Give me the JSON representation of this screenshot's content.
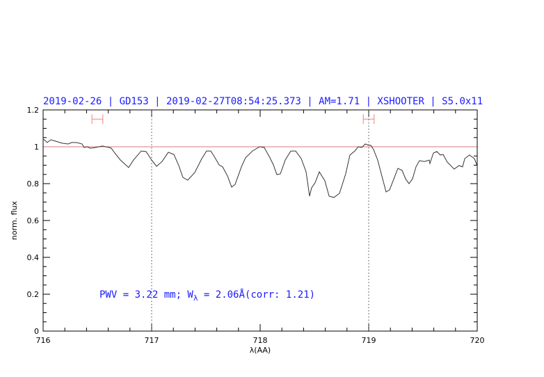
{
  "chart_data": {
    "type": "line",
    "title": "2019-02-26 | GD153 | 2019-02-27T08:54:25.373 | AM=1.71 | XSHOOTER | S5.0x11",
    "xlabel": "λ(AA)",
    "ylabel": "norm. flux",
    "xlim": [
      716,
      720
    ],
    "ylim": [
      0,
      1.2
    ],
    "xticks": [
      "716",
      "717",
      "718",
      "719",
      "720"
    ],
    "yticks": [
      "0",
      "0.2",
      "0.4",
      "0.6",
      "0.8",
      "1",
      "1.2"
    ],
    "grid": false,
    "annotation": {
      "prefix": "PWV = 3.22 mm; W",
      "sub": "λ",
      "suffix": " = 2.06Å(corr: 1.21)"
    },
    "reference_line_y": 1.0,
    "vertical_dotted_lines_x": [
      717,
      719
    ],
    "error_bars": [
      {
        "x_from": 716.45,
        "x_to": 716.55,
        "y": 1.15
      },
      {
        "x_from": 718.95,
        "x_to": 719.05,
        "y": 1.15
      }
    ],
    "colors": {
      "title": "#1a1aff",
      "spectrum": "#333333",
      "reference_line": "#d87878",
      "error_bars": "#f08080"
    },
    "series": [
      {
        "x": [
          716.006,
          716.038,
          716.071,
          716.115,
          716.179,
          716.231,
          716.263,
          716.308,
          716.359,
          716.378,
          716.404,
          716.436,
          716.481,
          716.545,
          716.609,
          716.628,
          716.66,
          716.712,
          716.788,
          716.833,
          716.904,
          716.949,
          717.0,
          717.045,
          717.096,
          717.154,
          717.205,
          717.25,
          717.288,
          717.333,
          717.397,
          717.462,
          717.506,
          717.545,
          717.577,
          717.622,
          717.654,
          717.699,
          717.737,
          717.769,
          717.827,
          717.865,
          717.929,
          717.994,
          718.038,
          718.09,
          718.122,
          718.154,
          718.186,
          718.231,
          718.282,
          718.327,
          718.378,
          718.423,
          718.455,
          718.474,
          718.506,
          718.545,
          718.596,
          718.635,
          718.679,
          718.731,
          718.788,
          718.827,
          718.872,
          718.904,
          718.936,
          718.968,
          719.0,
          719.019,
          719.045,
          719.083,
          719.128,
          719.16,
          719.192,
          719.269,
          719.308,
          719.34,
          719.372,
          719.404,
          719.436,
          719.468,
          719.513,
          719.558,
          719.564,
          719.596,
          719.628,
          719.66,
          719.686,
          719.724,
          719.788,
          719.833,
          719.865,
          719.885,
          719.929,
          719.974,
          720.0
        ],
        "y": [
          1.04,
          1.023,
          1.038,
          1.03,
          1.019,
          1.015,
          1.023,
          1.023,
          1.015,
          0.996,
          1.0,
          0.992,
          0.996,
          1.004,
          0.996,
          0.992,
          0.966,
          0.928,
          0.887,
          0.928,
          0.977,
          0.974,
          0.928,
          0.894,
          0.92,
          0.97,
          0.958,
          0.898,
          0.834,
          0.819,
          0.86,
          0.936,
          0.977,
          0.977,
          0.947,
          0.902,
          0.891,
          0.842,
          0.781,
          0.796,
          0.891,
          0.94,
          0.977,
          1.0,
          0.996,
          0.94,
          0.902,
          0.849,
          0.853,
          0.928,
          0.977,
          0.977,
          0.936,
          0.864,
          0.732,
          0.777,
          0.804,
          0.864,
          0.815,
          0.732,
          0.725,
          0.747,
          0.853,
          0.955,
          0.977,
          1.0,
          0.996,
          1.015,
          1.008,
          1.008,
          0.985,
          0.928,
          0.826,
          0.755,
          0.766,
          0.883,
          0.872,
          0.826,
          0.8,
          0.826,
          0.891,
          0.925,
          0.92,
          0.928,
          0.909,
          0.966,
          0.974,
          0.955,
          0.958,
          0.917,
          0.879,
          0.898,
          0.891,
          0.936,
          0.955,
          0.936,
          0.898
        ]
      }
    ]
  }
}
